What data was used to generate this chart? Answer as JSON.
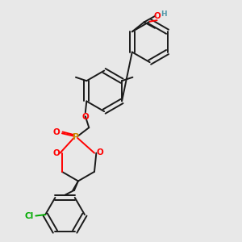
{
  "background_color": "#e8e8e8",
  "bond_color": "#1a1a1a",
  "oxygen_color": "#ff0000",
  "phosphorus_color": "#cc8800",
  "chlorine_color": "#00aa00",
  "hydrogen_color": "#5599aa",
  "figsize": [
    3.0,
    3.0
  ],
  "dpi": 100,
  "xlim": [
    0.0,
    1.0
  ],
  "ylim": [
    0.0,
    1.0
  ]
}
